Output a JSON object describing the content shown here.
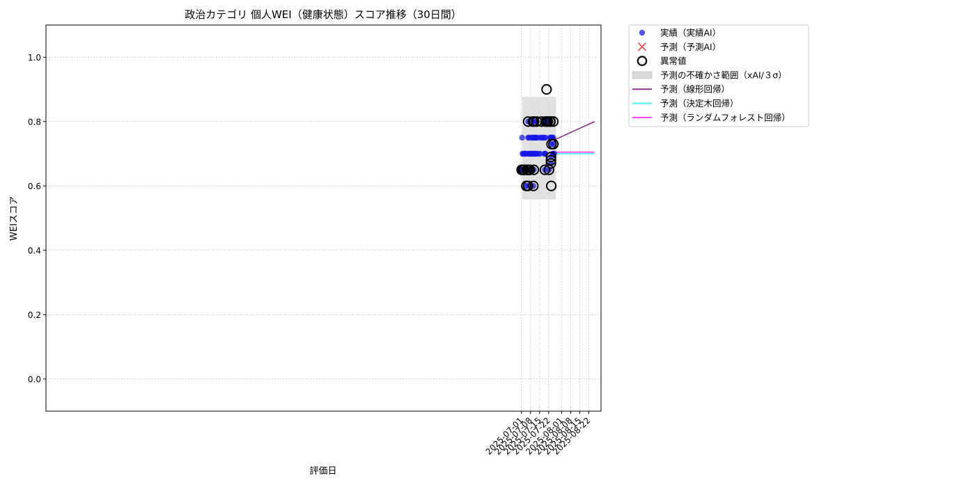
{
  "chart_data": {
    "type": "scatter",
    "title": "政治カテゴリ 個人WEI（健康状態）スコア推移（30日間）",
    "xlabel": "評価日",
    "ylabel": "WEIスコア",
    "x_range": [
      "2024-06-28T12:00",
      "2025-08-31T12:00"
    ],
    "ylim": [
      -0.1,
      1.1
    ],
    "yticks": [
      0.0,
      0.2,
      0.4,
      0.6,
      0.8,
      1.0
    ],
    "ytick_labels": [
      "0.0",
      "0.2",
      "0.4",
      "0.6",
      "0.8",
      "1.0"
    ],
    "xticks": [
      "2025-07-01",
      "2025-07-08",
      "2025-07-15",
      "2025-07-22",
      "2025-08-01",
      "2025-08-08",
      "2025-08-15",
      "2025-08-22"
    ],
    "xtick_labels": [
      "2025-07-01",
      "2025-07-08",
      "2025-07-15",
      "2025-07-22",
      "2025-08-01",
      "2025-08-08",
      "2025-08-15",
      "2025-08-22"
    ],
    "grid": true,
    "legend_position": "outside-top-right",
    "colors": {
      "actual": "#1515e8",
      "forecast_marker": "#ff4d4d",
      "anomaly_ring": "#000000",
      "band": "#d9d9d9",
      "linear": "#8e2a8e",
      "tree": "#33f3f3",
      "forest": "#ff33ff"
    },
    "legend": [
      {
        "key": "actual",
        "label": "実績（実績AI）"
      },
      {
        "key": "forecast",
        "label": "予測（予測AI）"
      },
      {
        "key": "anomaly",
        "label": "異常値"
      },
      {
        "key": "band",
        "label": "予測の不確かさ範囲（xAI/３σ）"
      },
      {
        "key": "linear",
        "label": "予測（線形回帰）"
      },
      {
        "key": "tree",
        "label": "予測（決定木回帰）"
      },
      {
        "key": "forest",
        "label": "予測（ランダムフォレスト回帰）"
      }
    ],
    "uncertainty_band": {
      "x_start": "2025-07-01T12:00",
      "x_end": "2025-07-27T18:00",
      "y_low": 0.558,
      "y_high": 0.877
    },
    "actual_points": [
      [
        "2025-07-01T03:00",
        0.65
      ],
      [
        "2025-07-01T12:00",
        0.75
      ],
      [
        "2025-07-01T14:00",
        0.65
      ],
      [
        "2025-07-01T21:00",
        0.7
      ],
      [
        "2025-07-02T03:00",
        0.65
      ],
      [
        "2025-07-02T06:00",
        0.7
      ],
      [
        "2025-07-02T15:00",
        0.65
      ],
      [
        "2025-07-02T22:00",
        0.65
      ],
      [
        "2025-07-03T02:00",
        0.7
      ],
      [
        "2025-07-03T06:00",
        0.65
      ],
      [
        "2025-07-03T14:00",
        0.7
      ],
      [
        "2025-07-03T20:00",
        0.7
      ],
      [
        "2025-07-04T03:00",
        0.7
      ],
      [
        "2025-07-04T18:00",
        0.6
      ],
      [
        "2025-07-04T22:00",
        0.7
      ],
      [
        "2025-07-05T02:00",
        0.65
      ],
      [
        "2025-07-05T14:00",
        0.65
      ],
      [
        "2025-07-05T20:00",
        0.65
      ],
      [
        "2025-07-06T02:00",
        0.6
      ],
      [
        "2025-07-06T03:00",
        0.65
      ],
      [
        "2025-07-06T04:00",
        0.8
      ],
      [
        "2025-07-06T06:00",
        0.75
      ],
      [
        "2025-07-06T12:00",
        0.7
      ],
      [
        "2025-07-06T16:00",
        0.75
      ],
      [
        "2025-07-06T22:00",
        0.65
      ],
      [
        "2025-07-07T04:00",
        0.7
      ],
      [
        "2025-07-07T09:00",
        0.65
      ],
      [
        "2025-07-07T13:00",
        0.65
      ],
      [
        "2025-07-07T20:00",
        0.7
      ],
      [
        "2025-07-08T03:00",
        0.7
      ],
      [
        "2025-07-08T11:00",
        0.75
      ],
      [
        "2025-07-08T18:00",
        0.7
      ],
      [
        "2025-07-09T03:00",
        0.7
      ],
      [
        "2025-07-09T13:00",
        0.75
      ],
      [
        "2025-07-09T19:00",
        0.8
      ],
      [
        "2025-07-09T23:00",
        0.75
      ],
      [
        "2025-07-10T02:00",
        0.7
      ],
      [
        "2025-07-10T05:00",
        0.6
      ],
      [
        "2025-07-10T08:00",
        0.7
      ],
      [
        "2025-07-10T14:00",
        0.65
      ],
      [
        "2025-07-10T18:00",
        0.8
      ],
      [
        "2025-07-11T02:00",
        0.7
      ],
      [
        "2025-07-11T07:00",
        0.75
      ],
      [
        "2025-07-11T12:00",
        0.7
      ],
      [
        "2025-07-11T18:00",
        0.75
      ],
      [
        "2025-07-12T02:00",
        0.7
      ],
      [
        "2025-07-12T08:00",
        0.75
      ],
      [
        "2025-07-12T11:00",
        0.7
      ],
      [
        "2025-07-12T19:00",
        0.8
      ],
      [
        "2025-07-13T01:00",
        0.75
      ],
      [
        "2025-07-14T02:00",
        0.7
      ],
      [
        "2025-07-15T04:00",
        0.75
      ],
      [
        "2025-07-15T11:00",
        0.7
      ],
      [
        "2025-07-16T14:00",
        0.75
      ],
      [
        "2025-07-17T12:00",
        0.75
      ],
      [
        "2025-07-18T15:00",
        0.75
      ],
      [
        "2025-07-18T19:00",
        0.7
      ],
      [
        "2025-07-19T02:00",
        0.65
      ],
      [
        "2025-07-19T07:00",
        0.7
      ],
      [
        "2025-07-19T11:00",
        0.75
      ],
      [
        "2025-07-19T12:00",
        0.7
      ],
      [
        "2025-07-19T15:00",
        0.8
      ],
      [
        "2025-07-19T23:00",
        0.8
      ],
      [
        "2025-07-20T12:00",
        0.8
      ],
      [
        "2025-07-21T00:00",
        0.8
      ],
      [
        "2025-07-22T07:00",
        0.65
      ],
      [
        "2025-07-23T01:00",
        0.75
      ],
      [
        "2025-07-23T08:00",
        0.8
      ],
      [
        "2025-07-23T12:00",
        0.75
      ],
      [
        "2025-07-23T19:00",
        0.67
      ],
      [
        "2025-07-23T22:00",
        0.69
      ],
      [
        "2025-07-24T02:00",
        0.75
      ],
      [
        "2025-07-24T05:00",
        0.73
      ],
      [
        "2025-07-24T08:00",
        0.75
      ],
      [
        "2025-07-24T15:00",
        0.75
      ],
      [
        "2025-07-24T22:00",
        0.75
      ],
      [
        "2025-07-25T05:00",
        0.7
      ],
      [
        "2025-07-25T12:00",
        0.73
      ],
      [
        "2025-07-25T14:00",
        0.75
      ],
      [
        "2025-07-25T15:00",
        0.7
      ],
      [
        "2025-07-26T08:00",
        0.7
      ]
    ],
    "anomaly_points": [
      [
        "2025-07-01T03:00",
        0.65
      ],
      [
        "2025-07-02T06:00",
        0.65
      ],
      [
        "2025-07-02T15:00",
        0.65
      ],
      [
        "2025-07-03T01:00",
        0.65
      ],
      [
        "2025-07-04T18:00",
        0.6
      ],
      [
        "2025-07-05T02:00",
        0.65
      ],
      [
        "2025-07-05T14:00",
        0.65
      ],
      [
        "2025-07-05T20:00",
        0.65
      ],
      [
        "2025-07-06T02:00",
        0.6
      ],
      [
        "2025-07-06T04:00",
        0.8
      ],
      [
        "2025-07-06T22:00",
        0.65
      ],
      [
        "2025-07-07T09:00",
        0.65
      ],
      [
        "2025-07-07T13:00",
        0.65
      ],
      [
        "2025-07-09T19:00",
        0.8
      ],
      [
        "2025-07-10T05:00",
        0.6
      ],
      [
        "2025-07-10T14:00",
        0.65
      ],
      [
        "2025-07-10T18:00",
        0.8
      ],
      [
        "2025-07-12T19:00",
        0.8
      ],
      [
        "2025-07-16T14:00",
        0.8
      ],
      [
        "2025-07-19T02:00",
        0.65
      ],
      [
        "2025-07-19T15:00",
        0.8
      ],
      [
        "2025-07-19T23:00",
        0.8
      ],
      [
        "2025-07-20T10:00",
        0.9
      ],
      [
        "2025-07-20T12:00",
        0.8
      ],
      [
        "2025-07-21T12:00",
        0.8
      ],
      [
        "2025-07-22T07:00",
        0.65
      ],
      [
        "2025-07-23T04:00",
        0.8
      ],
      [
        "2025-07-23T12:00",
        0.8
      ],
      [
        "2025-07-23T19:00",
        0.67
      ],
      [
        "2025-07-23T20:00",
        0.68
      ],
      [
        "2025-07-23T21:00",
        0.69
      ],
      [
        "2025-07-24T01:00",
        0.6
      ],
      [
        "2025-07-24T05:00",
        0.73
      ],
      [
        "2025-07-25T15:00",
        0.8
      ],
      [
        "2025-07-25T16:00",
        0.73
      ]
    ],
    "series": [
      {
        "key": "linear",
        "name": "予測（線形回帰）",
        "x": [
          "2025-07-27T12:00",
          "2025-08-26T12:00"
        ],
        "y": [
          0.745,
          0.8
        ]
      },
      {
        "key": "tree",
        "name": "予測（決定木回帰）",
        "x": [
          "2025-07-27T12:00",
          "2025-08-26T12:00"
        ],
        "y": [
          0.7,
          0.7
        ]
      },
      {
        "key": "forest",
        "name": "予測（ランダムフォレスト回帰）",
        "x": [
          "2025-07-27T12:00",
          "2025-08-26T12:00"
        ],
        "y": [
          0.705,
          0.705
        ]
      }
    ]
  }
}
